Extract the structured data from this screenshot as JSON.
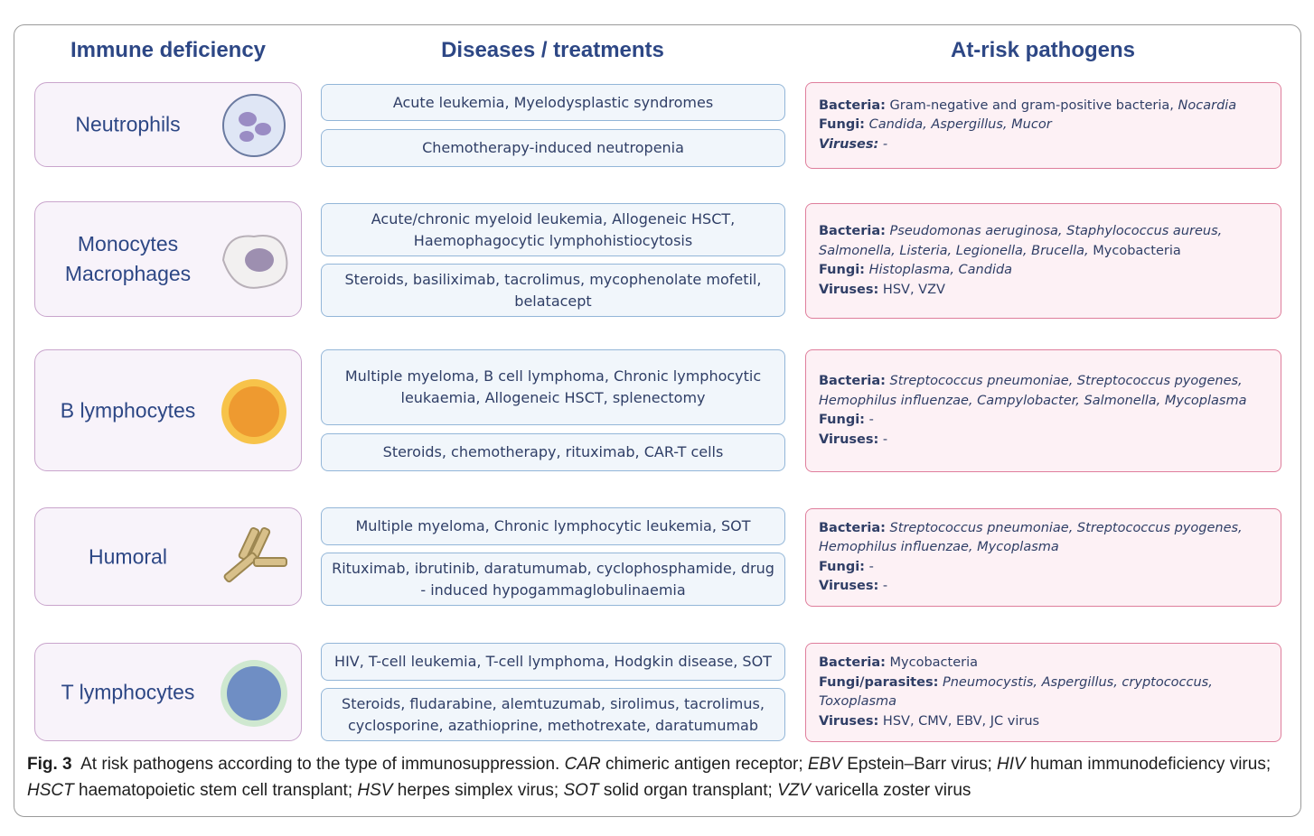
{
  "headers": [
    "Immune deficiency",
    "Diseases / treatments",
    "At-risk pathogens"
  ],
  "rows": [
    {
      "deficiency": [
        "Neutrophils"
      ],
      "treatments": [
        "Acute leukemia, Myelodysplastic syndromes",
        "Chemotherapy-induced neutropenia"
      ],
      "pathogens": [
        {
          "label": "Bacteria:",
          "label_italic": false,
          "parts": [
            {
              "text": "Gram-negative and gram-positive bacteria, ",
              "italic": false
            },
            {
              "text": "Nocardia",
              "italic": true
            }
          ]
        },
        {
          "label": "Fungi:",
          "label_italic": false,
          "parts": [
            {
              "text": "Candida, Aspergillus, Mucor",
              "italic": true
            }
          ]
        },
        {
          "label": "Viruses:",
          "label_italic": true,
          "parts": [
            {
              "text": "-",
              "italic": true
            }
          ]
        }
      ]
    },
    {
      "deficiency": [
        "Monocytes",
        "Macrophages"
      ],
      "treatments": [
        "Acute/chronic myeloid leukemia, Allogeneic HSCT, Haemophagocytic lymphohistiocytosis",
        "Steroids, basiliximab, tacrolimus, mycophenolate mofetil, belatacept"
      ],
      "pathogens": [
        {
          "label": "Bacteria:",
          "label_italic": false,
          "parts": [
            {
              "text": "Pseudomonas aeruginosa, Staphylococcus aureus, Salmonella, Listeria, Legionella, Brucella,",
              "italic": true
            },
            {
              "text": " Mycobacteria",
              "italic": false
            }
          ]
        },
        {
          "label": "Fungi:",
          "label_italic": false,
          "parts": [
            {
              "text": "Histoplasma, Candida",
              "italic": true
            }
          ]
        },
        {
          "label": "Viruses:",
          "label_italic": false,
          "parts": [
            {
              "text": "HSV, VZV",
              "italic": false
            }
          ]
        }
      ]
    },
    {
      "deficiency": [
        "B lymphocytes"
      ],
      "treatments": [
        "Multiple myeloma, B cell lymphoma, Chronic lymphocytic leukaemia, Allogeneic HSCT, splenectomy",
        "Steroids, chemotherapy, rituximab, CAR-T cells"
      ],
      "pathogens": [
        {
          "label": "Bacteria:",
          "label_italic": false,
          "parts": [
            {
              "text": "Streptococcus pneumoniae, Streptococcus pyogenes, Hemophilus influenzae, Campylobacter, Salmonella, Mycoplasma",
              "italic": true
            }
          ]
        },
        {
          "label": "Fungi:",
          "label_italic": false,
          "parts": [
            {
              "text": "-",
              "italic": false
            }
          ]
        },
        {
          "label": "Viruses:",
          "label_italic": false,
          "parts": [
            {
              "text": "-",
              "italic": false
            }
          ]
        }
      ]
    },
    {
      "deficiency": [
        "Humoral"
      ],
      "treatments": [
        "Multiple myeloma, Chronic lymphocytic leukemia, SOT",
        "Rituximab, ibrutinib, daratumumab, cyclophosphamide, drug - induced hypogammaglobulinaemia"
      ],
      "pathogens": [
        {
          "label": "Bacteria:",
          "label_italic": false,
          "parts": [
            {
              "text": "Streptococcus pneumoniae, Streptococcus pyogenes, Hemophilus influenzae, Mycoplasma",
              "italic": true
            }
          ]
        },
        {
          "label": "Fungi:",
          "label_italic": false,
          "parts": [
            {
              "text": "-",
              "italic": false
            }
          ]
        },
        {
          "label": "Viruses:",
          "label_italic": false,
          "parts": [
            {
              "text": "-",
              "italic": false
            }
          ]
        }
      ]
    },
    {
      "deficiency": [
        "T lymphocytes"
      ],
      "treatments": [
        "HIV, T-cell leukemia, T-cell lymphoma, Hodgkin disease, SOT",
        "Steroids, fludarabine, alemtuzumab, sirolimus, tacrolimus, cyclosporine, azathioprine, methotrexate, daratumumab"
      ],
      "pathogens": [
        {
          "label": "Bacteria:",
          "label_italic": false,
          "parts": [
            {
              "text": "Mycobacteria",
              "italic": false
            }
          ]
        },
        {
          "label": "Fungi/parasites:",
          "label_italic": false,
          "parts": [
            {
              "text": "Pneumocystis, Aspergillus, cryptococcus, Toxoplasma",
              "italic": true
            }
          ]
        },
        {
          "label": "Viruses:",
          "label_italic": false,
          "parts": [
            {
              "text": "HSV, CMV, EBV, JC virus",
              "italic": false
            }
          ]
        }
      ]
    }
  ],
  "caption": {
    "label": "Fig. 3",
    "parts": [
      {
        "text": "  At risk pathogens according to the type of immunosuppression. ",
        "italic": false
      },
      {
        "text": "CAR",
        "italic": true
      },
      {
        "text": " chimeric antigen receptor; ",
        "italic": false
      },
      {
        "text": "EBV",
        "italic": true
      },
      {
        "text": " Epstein–Barr virus; ",
        "italic": false
      },
      {
        "text": "HIV",
        "italic": true
      },
      {
        "text": " human immunodeficiency virus; ",
        "italic": false
      },
      {
        "text": "HSCT",
        "italic": true
      },
      {
        "text": " haematopoietic stem cell transplant; ",
        "italic": false
      },
      {
        "text": "HSV",
        "italic": true
      },
      {
        "text": " herpes simplex virus; ",
        "italic": false
      },
      {
        "text": "SOT",
        "italic": true
      },
      {
        "text": " solid organ transplant; ",
        "italic": false
      },
      {
        "text": "VZV",
        "italic": true
      },
      {
        "text": " varicella zoster virus",
        "italic": false
      }
    ]
  }
}
